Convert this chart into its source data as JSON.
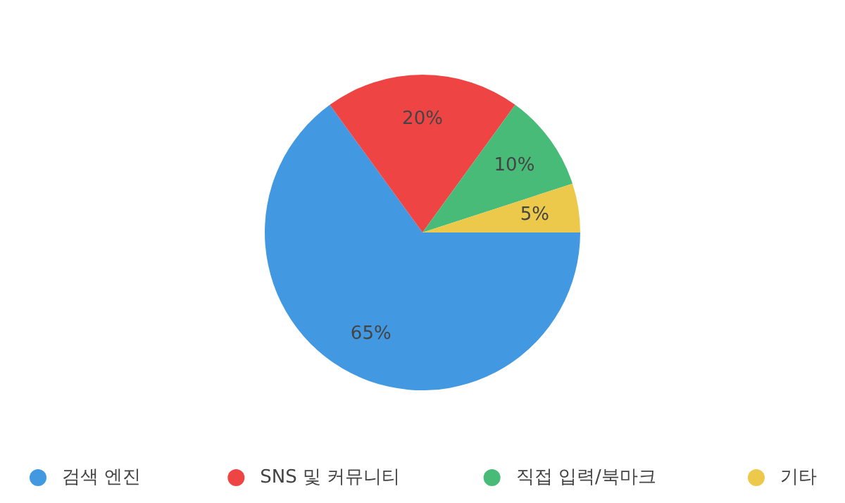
{
  "chart_data": {
    "type": "pie",
    "categories": [
      "검색 엔진",
      "SNS 및 커뮤니티",
      "직접 입력/북마크",
      "기타"
    ],
    "values": [
      65,
      20,
      10,
      5
    ],
    "colors": [
      "#4299e1",
      "#ef4444",
      "#48bb78",
      "#ecc94b"
    ],
    "value_labels": [
      "65%",
      "20%",
      "10%",
      "5%"
    ],
    "legend": "bottom"
  }
}
